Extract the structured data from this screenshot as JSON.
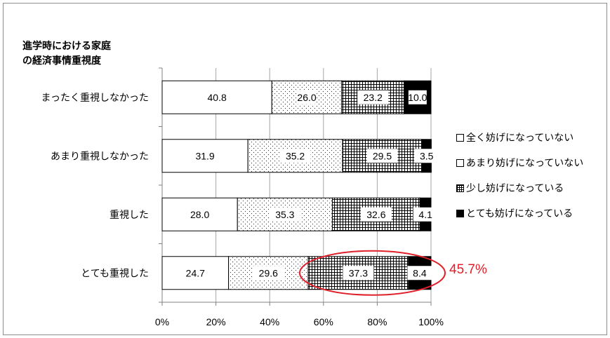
{
  "chart_data": {
    "type": "bar",
    "orientation": "horizontal",
    "stacked": true,
    "percent_stacked": true,
    "title": "進学時における家庭\nの経済事情重視度",
    "categories": [
      "まったく重視しなかった",
      "あまり重視しなかった",
      "重視した",
      "とても重視した"
    ],
    "series": [
      {
        "name": "全く妨げになっていない",
        "pattern": "white",
        "values": [
          40.8,
          31.9,
          28.0,
          24.7
        ]
      },
      {
        "name": "あまり妨げになっていない",
        "pattern": "dots",
        "values": [
          26.0,
          35.2,
          35.3,
          29.6
        ]
      },
      {
        "name": "少し妨げになっている",
        "pattern": "grid",
        "values": [
          23.2,
          29.5,
          32.6,
          37.3
        ]
      },
      {
        "name": "とても妨げになっている",
        "pattern": "black",
        "values": [
          10.0,
          3.5,
          4.1,
          8.4
        ]
      }
    ],
    "xlim": [
      0,
      100
    ],
    "x_ticks": [
      "0%",
      "20%",
      "40%",
      "60%",
      "80%",
      "100%"
    ],
    "grid": true,
    "legend_position": "right",
    "annotation": {
      "text": "45.7%",
      "color": "#e0202a",
      "encircled_category": "とても重視した"
    }
  }
}
